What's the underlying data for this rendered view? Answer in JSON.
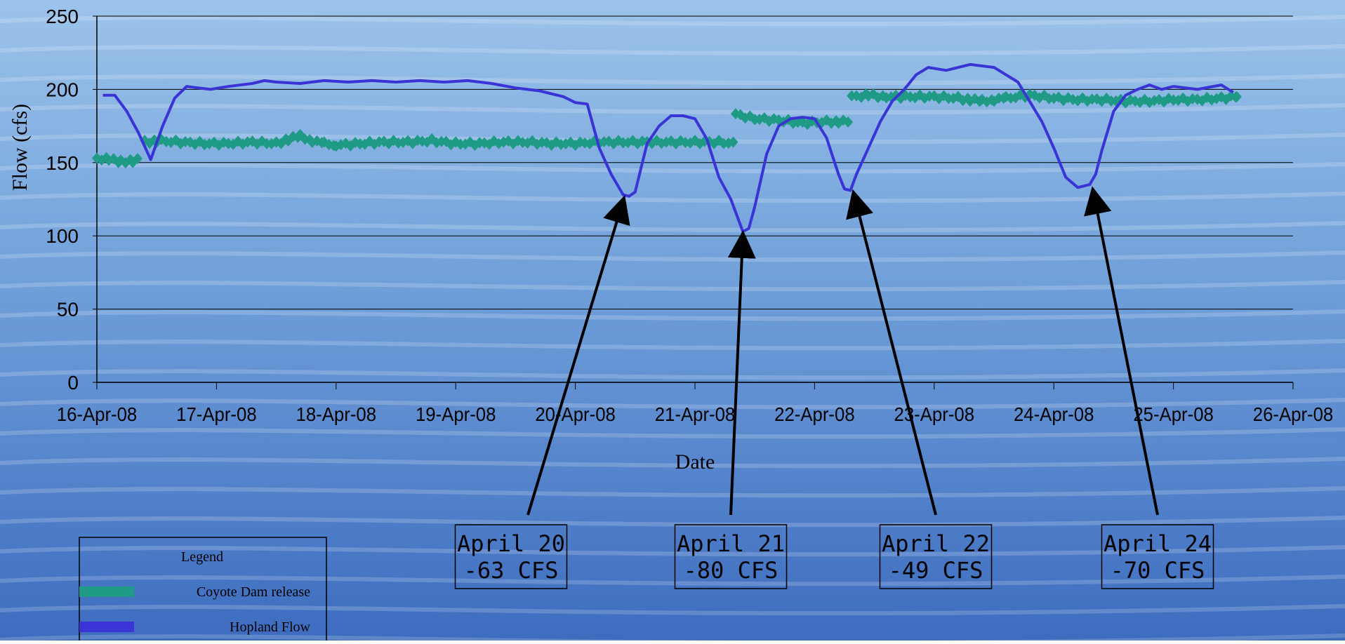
{
  "chart_data": {
    "type": "line",
    "title": "",
    "xlabel": "Date",
    "ylabel": "Flow (cfs)",
    "ylim": [
      0,
      250
    ],
    "yticks": [
      "0",
      "50",
      "100",
      "150",
      "200",
      "250"
    ],
    "xlim": [
      "2008-04-16",
      "2008-04-26"
    ],
    "xticks": [
      "16-Apr-08",
      "17-Apr-08",
      "18-Apr-08",
      "19-Apr-08",
      "20-Apr-08",
      "21-Apr-08",
      "22-Apr-08",
      "23-Apr-08",
      "24-Apr-08",
      "25-Apr-08",
      "26-Apr-08"
    ],
    "grid": "horizontal",
    "series": [
      {
        "name": "Coyote Dam release",
        "color": "#1f9a84",
        "marker": "diamond",
        "x": [
          16.0,
          16.1,
          16.2,
          16.3,
          16.38,
          16.4,
          16.5,
          16.7,
          16.9,
          17.1,
          17.3,
          17.5,
          17.6,
          17.7,
          17.8,
          17.9,
          18.0,
          18.2,
          18.4,
          18.6,
          18.8,
          19.0,
          19.2,
          19.4,
          19.6,
          19.8,
          20.0,
          20.2,
          20.4,
          20.6,
          20.8,
          21.0,
          21.2,
          21.33,
          21.34,
          21.5,
          21.7,
          21.9,
          22.1,
          22.2,
          22.3,
          22.31,
          22.45,
          22.6,
          22.8,
          23.0,
          23.2,
          23.3,
          23.4,
          23.5,
          23.6,
          23.8,
          24.0,
          24.2,
          24.4,
          24.6,
          24.8,
          25.0,
          25.2,
          25.4,
          25.53
        ],
        "y": [
          153,
          152,
          151,
          151,
          152,
          164,
          165,
          164,
          163,
          163,
          164,
          163,
          166,
          168,
          165,
          163,
          162,
          163,
          164,
          164,
          165,
          163,
          163,
          164,
          164,
          163,
          163,
          164,
          164,
          164,
          164,
          164,
          164,
          163,
          183,
          180,
          179,
          177,
          178,
          178,
          178,
          195,
          196,
          195,
          195,
          195,
          194,
          193,
          192,
          193,
          194,
          196,
          194,
          193,
          193,
          192,
          192,
          193,
          193,
          194,
          195
        ]
      },
      {
        "name": "Hopland Flow",
        "color": "#3a34d6",
        "x": [
          16.05,
          16.15,
          16.25,
          16.35,
          16.45,
          16.55,
          16.65,
          16.75,
          16.85,
          16.95,
          17.1,
          17.3,
          17.4,
          17.5,
          17.7,
          17.9,
          18.1,
          18.3,
          18.5,
          18.7,
          18.9,
          19.1,
          19.3,
          19.5,
          19.7,
          19.9,
          20.0,
          20.1,
          20.2,
          20.3,
          20.4,
          20.45,
          20.5,
          20.6,
          20.7,
          20.8,
          20.9,
          21.0,
          21.1,
          21.2,
          21.3,
          21.4,
          21.45,
          21.5,
          21.6,
          21.7,
          21.8,
          21.9,
          22.0,
          22.1,
          22.2,
          22.25,
          22.3,
          22.35,
          22.45,
          22.55,
          22.65,
          22.75,
          22.85,
          22.95,
          23.1,
          23.3,
          23.5,
          23.7,
          23.9,
          24.0,
          24.1,
          24.2,
          24.3,
          24.35,
          24.4,
          24.5,
          24.6,
          24.7,
          24.8,
          24.9,
          25.0,
          25.2,
          25.4,
          25.5
        ],
        "y": [
          196,
          196,
          185,
          170,
          152,
          175,
          194,
          202,
          201,
          200,
          202,
          204,
          206,
          205,
          204,
          206,
          205,
          206,
          205,
          206,
          205,
          206,
          204,
          201,
          199,
          195,
          191,
          190,
          160,
          142,
          128,
          127,
          130,
          163,
          175,
          182,
          182,
          180,
          166,
          140,
          125,
          103,
          105,
          120,
          156,
          175,
          180,
          181,
          180,
          167,
          142,
          132,
          131,
          142,
          160,
          178,
          192,
          200,
          210,
          215,
          213,
          217,
          215,
          205,
          178,
          160,
          140,
          133,
          135,
          142,
          158,
          185,
          196,
          200,
          203,
          200,
          202,
          200,
          203,
          198
        ]
      }
    ],
    "annotations": [
      {
        "line1": "April 20",
        "line2": "-63 CFS",
        "x": 20.4,
        "y": 127
      },
      {
        "line1": "April 21",
        "line2": "-80 CFS",
        "x": 21.4,
        "y": 103
      },
      {
        "line1": "April 22",
        "line2": "-49 CFS",
        "x": 22.33,
        "y": 131
      },
      {
        "line1": "April 24",
        "line2": "-70 CFS",
        "x": 24.33,
        "y": 133
      }
    ],
    "legend": {
      "title": "Legend",
      "placement": "bottom-left",
      "entries": [
        "Coyote Dam release",
        "Hopland Flow"
      ]
    }
  },
  "colors": {
    "background_top": "#9cc3ea",
    "background_mid": "#5c8fd0",
    "background_bottom": "#3d6cbf",
    "axis": "#000000",
    "dam": "#1f9a84",
    "hopland": "#3a34d6"
  }
}
